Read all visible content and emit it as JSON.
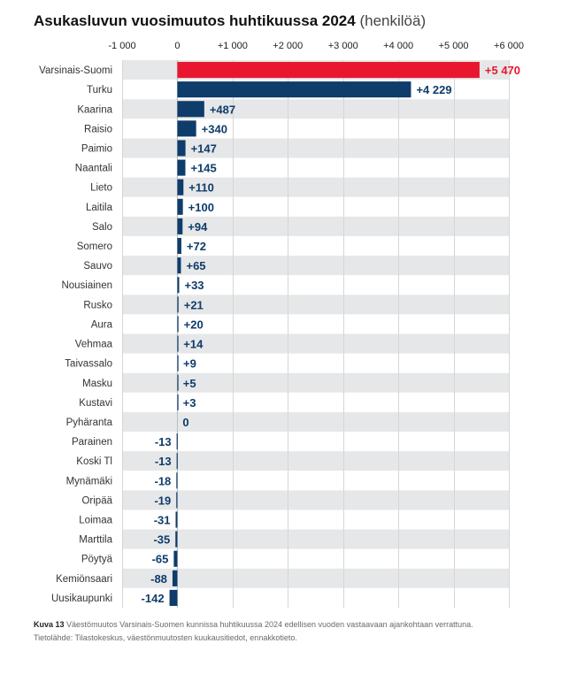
{
  "title": {
    "main": "Asukasluvun vuosimuutos huhtikuussa 2024",
    "unit": "(henkilöä)"
  },
  "caption": {
    "figure": "Kuva 13",
    "text": "Väestömuutos Varsinais-Suomen kunnissa huhtikuussa 2024 edellisen vuoden vastaavaan ajankohtaan verrattuna.",
    "source": "Tietolähde: Tilastokeskus, väestönmuutosten kuukausitiedot, ennakkotieto."
  },
  "colors": {
    "highlight": "#e8172f",
    "bar": "#0e3c6b",
    "row_alt": "#e6e7e8",
    "grid": "#d6d6d6"
  },
  "chart_data": {
    "type": "bar",
    "orientation": "horizontal",
    "title": "Asukasluvun vuosimuutos huhtikuussa 2024 (henkilöä)",
    "xlabel": "",
    "ylabel": "",
    "xlim": [
      -1000,
      6000
    ],
    "xticks": [
      -1000,
      0,
      1000,
      2000,
      3000,
      4000,
      5000,
      6000
    ],
    "xtick_labels": [
      "-1 000",
      "0",
      "+1 000",
      "+2 000",
      "+3 000",
      "+4 000",
      "+5 000",
      "+6 000"
    ],
    "tick_position": "top",
    "grid": true,
    "highlight_category": "Varsinais-Suomi",
    "categories": [
      "Varsinais-Suomi",
      "Turku",
      "Kaarina",
      "Raisio",
      "Paimio",
      "Naantali",
      "Lieto",
      "Laitila",
      "Salo",
      "Somero",
      "Sauvo",
      "Nousiainen",
      "Rusko",
      "Aura",
      "Vehmaa",
      "Taivassalo",
      "Masku",
      "Kustavi",
      "Pyhäranta",
      "Parainen",
      "Koski Tl",
      "Mynämäki",
      "Oripää",
      "Loimaa",
      "Marttila",
      "Pöytyä",
      "Kemiönsaari",
      "Uusikaupunki"
    ],
    "values": [
      5470,
      4229,
      487,
      340,
      147,
      145,
      110,
      100,
      94,
      72,
      65,
      33,
      21,
      20,
      14,
      9,
      5,
      3,
      0,
      -13,
      -13,
      -18,
      -19,
      -31,
      -35,
      -65,
      -88,
      -142
    ],
    "value_labels": [
      "+5 470",
      "+4 229",
      "+487",
      "+340",
      "+147",
      "+145",
      "+110",
      "+100",
      "+94",
      "+72",
      "+65",
      "+33",
      "+21",
      "+20",
      "+14",
      "+9",
      "+5",
      "+3",
      "0",
      "-13",
      "-13",
      "-18",
      "-19",
      "-31",
      "-35",
      "-65",
      "-88",
      "-142"
    ]
  }
}
